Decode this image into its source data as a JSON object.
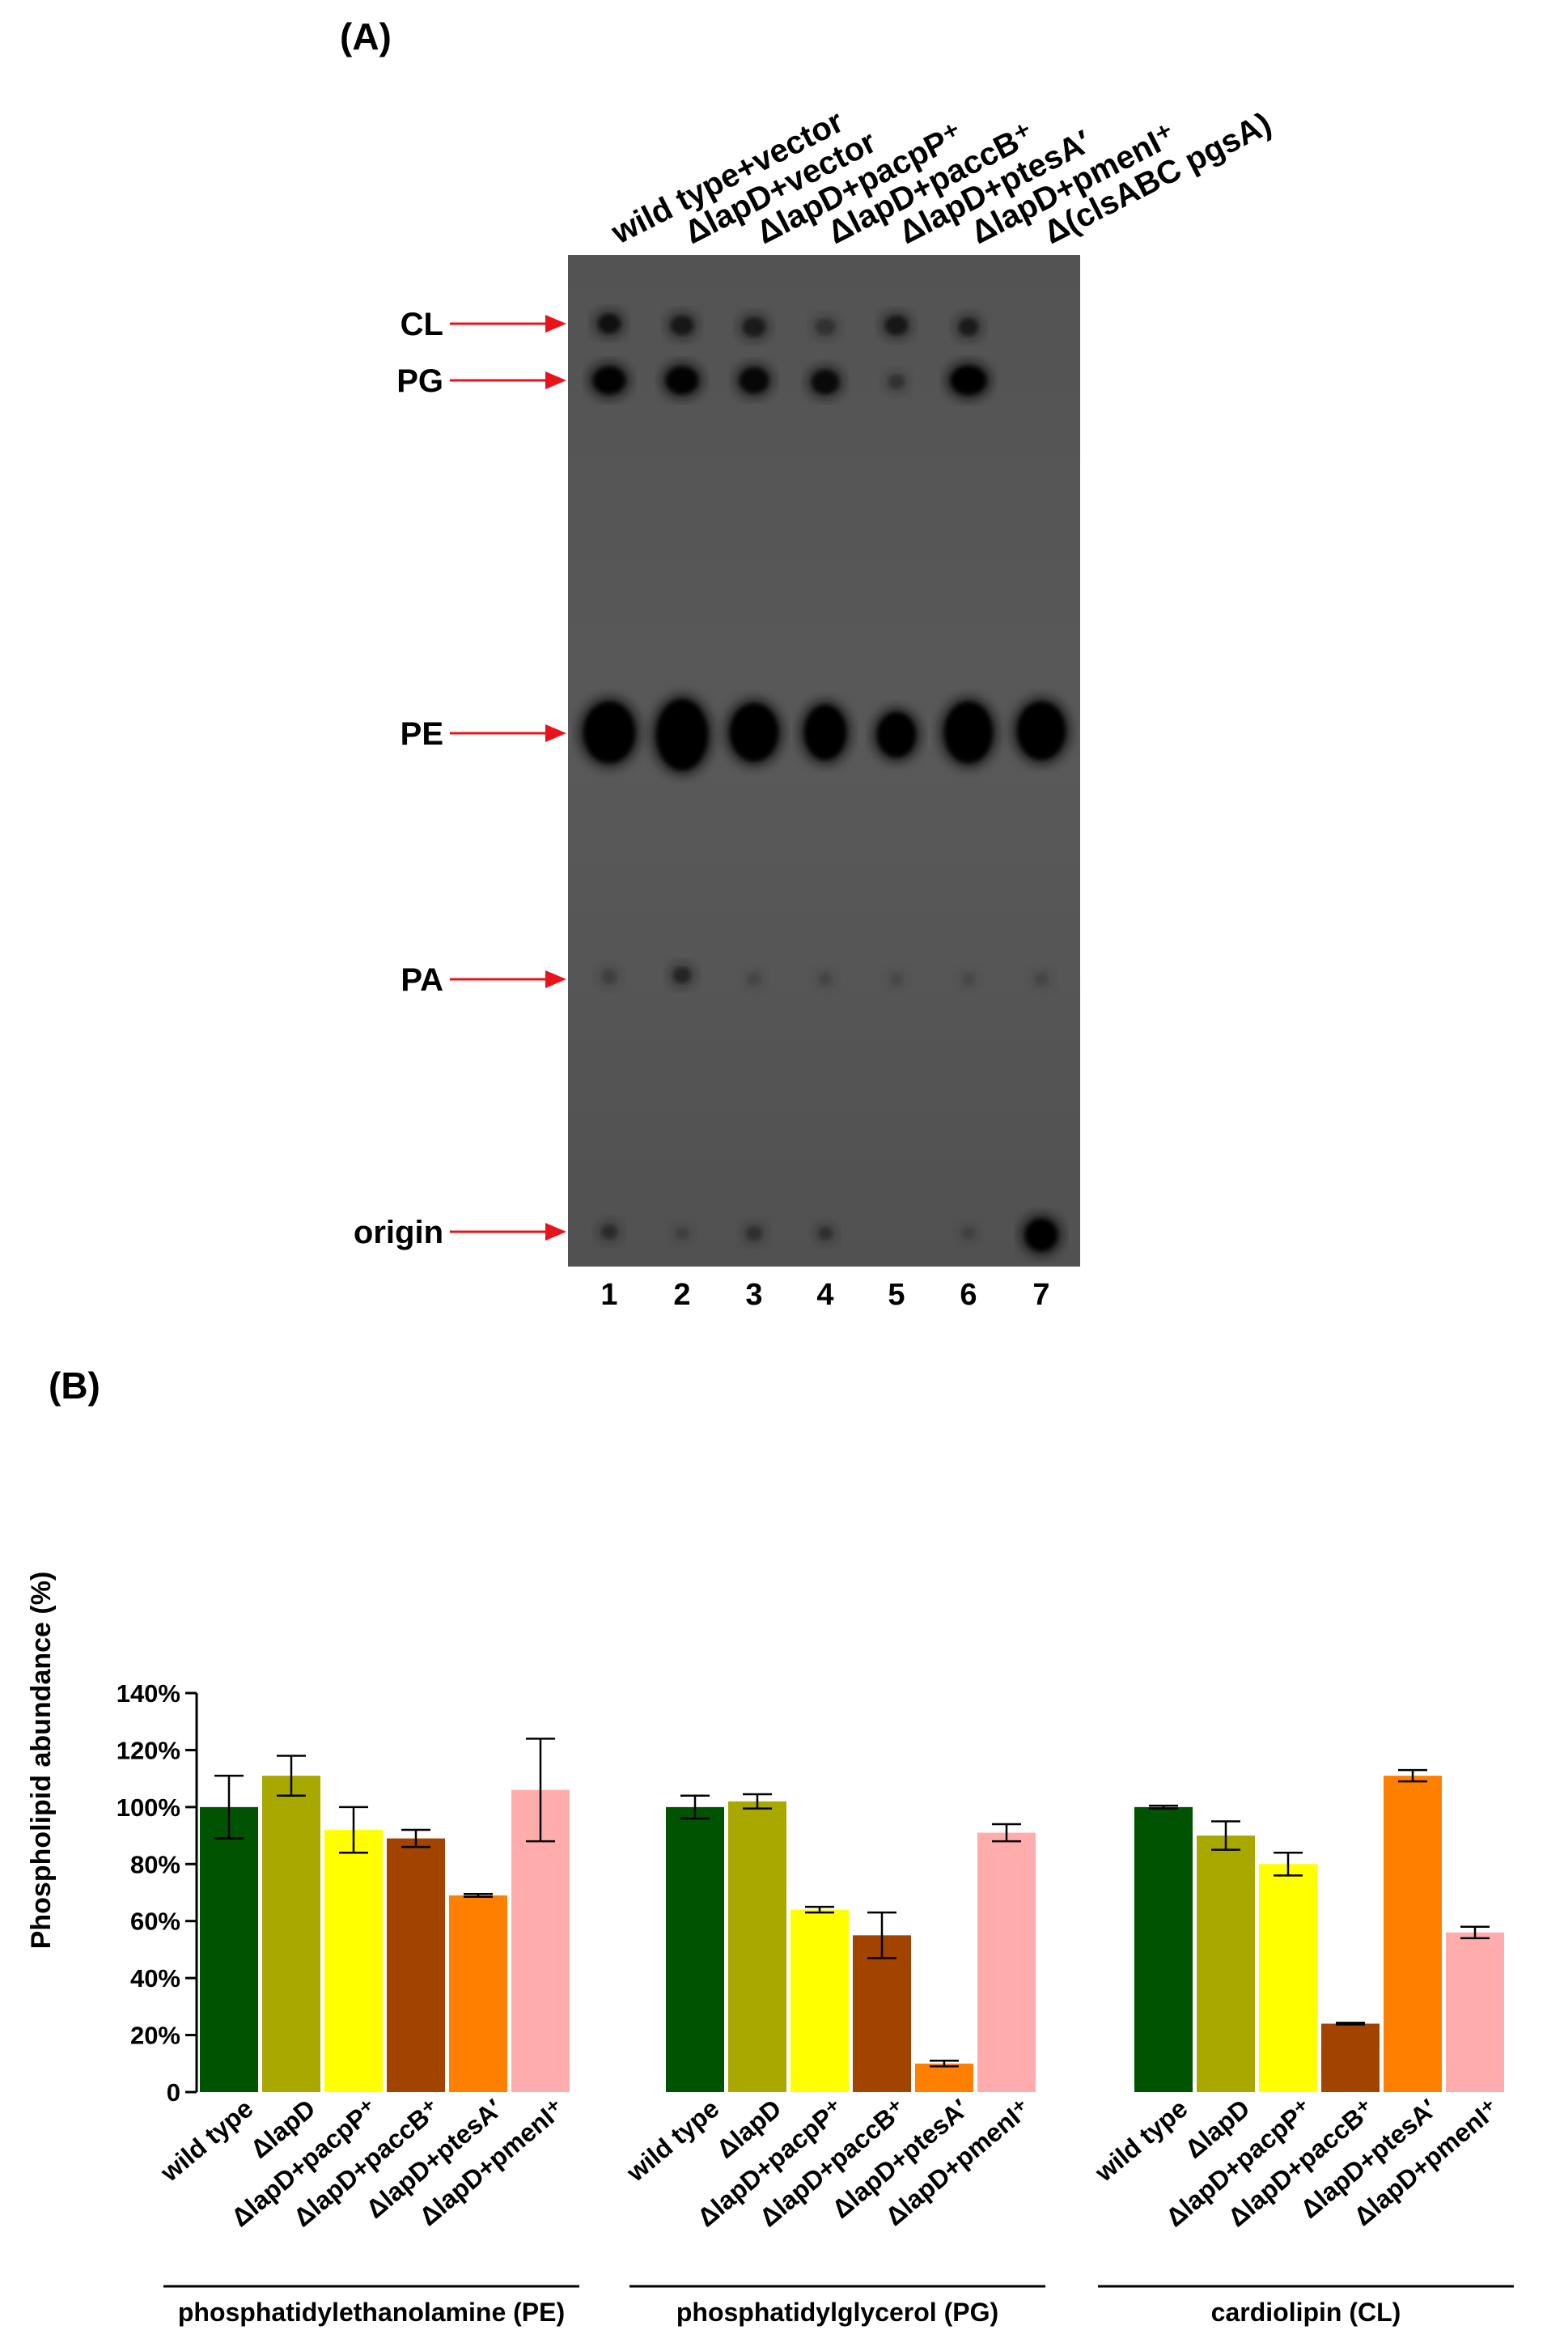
{
  "panelA": {
    "label": "(A)",
    "lanes": [
      {
        "num": "1",
        "name": "wild type+vector"
      },
      {
        "num": "2",
        "name": "ΔlapD+vector"
      },
      {
        "num": "3",
        "name": "ΔlapD+pacpP⁺"
      },
      {
        "num": "4",
        "name": "ΔlapD+paccB⁺"
      },
      {
        "num": "5",
        "name": "ΔlapD+ptesA′"
      },
      {
        "num": "6",
        "name": "ΔlapD+pmenI⁺"
      },
      {
        "num": "7",
        "name": "Δ(clsABC pgsA)"
      }
    ],
    "bands": [
      "CL",
      "PG",
      "PE",
      "PA",
      "origin"
    ],
    "arrow_color": "#e8141b"
  },
  "panelB": {
    "label": "(B)",
    "chart_data": {
      "type": "bar",
      "ylabel": "Phospholipid abundance (%)",
      "ylim": [
        0,
        140
      ],
      "yticks": [
        0,
        20,
        40,
        60,
        80,
        100,
        120,
        140
      ],
      "ytick_labels": [
        "0",
        "20%",
        "40%",
        "60%",
        "80%",
        "100%",
        "120%",
        "140%"
      ],
      "categories": [
        "wild type",
        "ΔlapD",
        "ΔlapD+pacpP⁺",
        "ΔlapD+paccB⁺",
        "ΔlapD+ptesA′",
        "ΔlapD+pmenI⁺"
      ],
      "colors": [
        "#005300",
        "#a9a800",
        "#ffff00",
        "#a34300",
        "#ff7f00",
        "#ffadac"
      ],
      "groups": [
        {
          "name": "phosphatidylethanolamine (PE)",
          "values": [
            100,
            111,
            92,
            89,
            69,
            106
          ],
          "errors": [
            11,
            7,
            8,
            3,
            0.5,
            18
          ]
        },
        {
          "name": "phosphatidylglycerol (PG)",
          "values": [
            100,
            102,
            64,
            55,
            10,
            91
          ],
          "errors": [
            4,
            2.5,
            1,
            8,
            1,
            3
          ]
        },
        {
          "name": "cardiolipin (CL)",
          "values": [
            100,
            90,
            80,
            24,
            111,
            56
          ],
          "errors": [
            0.5,
            5,
            4,
            0.3,
            2,
            2
          ]
        }
      ]
    }
  }
}
